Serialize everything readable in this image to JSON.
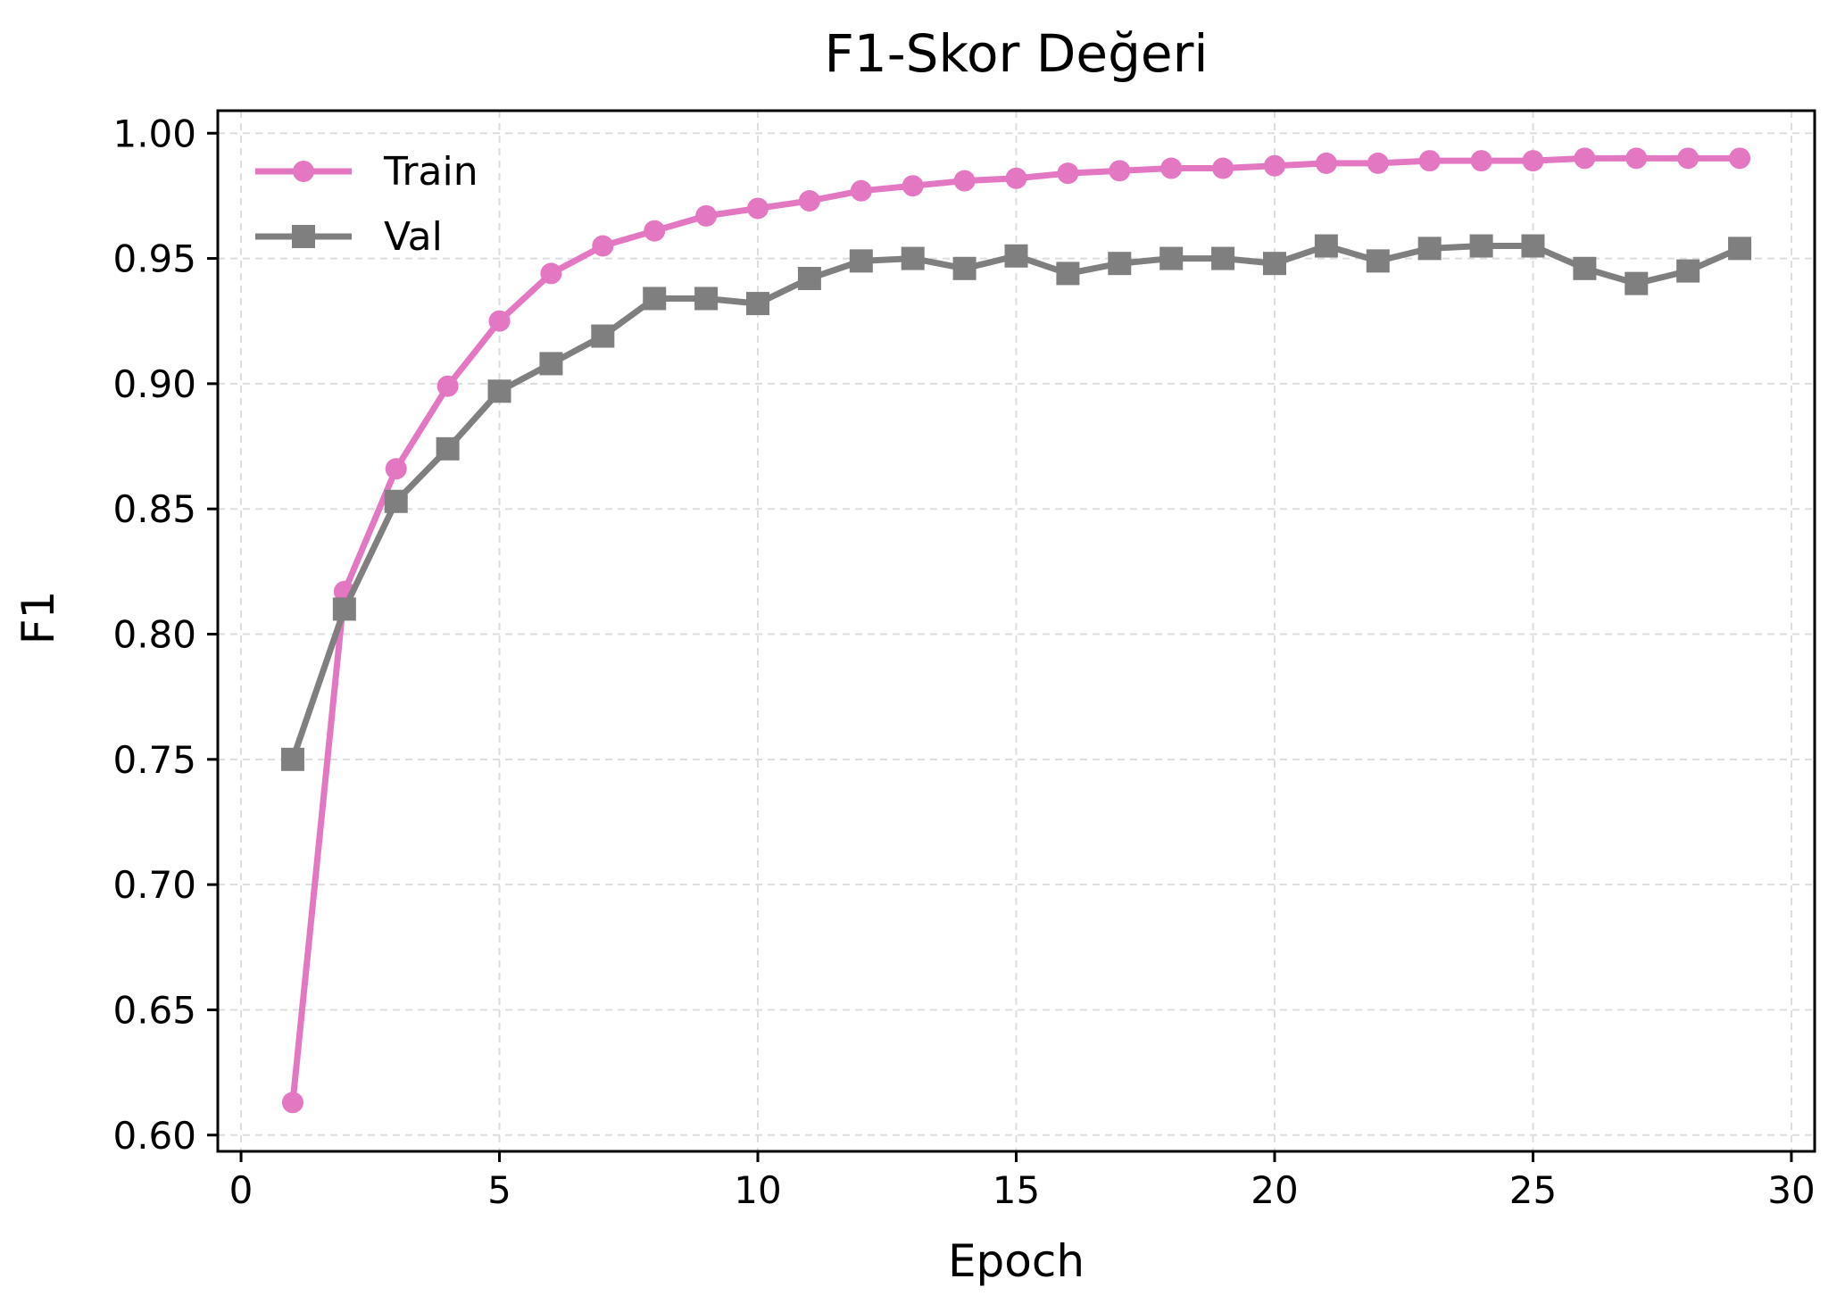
{
  "chart_data": {
    "type": "line",
    "title": "F1-Skor Değeri",
    "xlabel": "Epoch",
    "ylabel": "F1",
    "xlim": [
      -0.45,
      30.45
    ],
    "ylim": [
      0.5935,
      1.009
    ],
    "x_ticks": [
      0,
      5,
      10,
      15,
      20,
      25,
      30
    ],
    "y_ticks": [
      0.6,
      0.65,
      0.7,
      0.75,
      0.8,
      0.85,
      0.9,
      0.95,
      1.0
    ],
    "x_tick_labels": [
      "0",
      "5",
      "10",
      "15",
      "20",
      "25",
      "30"
    ],
    "y_tick_labels": [
      "0.60",
      "0.65",
      "0.70",
      "0.75",
      "0.80",
      "0.85",
      "0.90",
      "0.95",
      "1.00"
    ],
    "grid": true,
    "legend_position": "upper-left",
    "x": [
      1,
      2,
      3,
      4,
      5,
      6,
      7,
      8,
      9,
      10,
      11,
      12,
      13,
      14,
      15,
      16,
      17,
      18,
      19,
      20,
      21,
      22,
      23,
      24,
      25,
      26,
      27,
      28,
      29
    ],
    "series": [
      {
        "name": "Train",
        "color": "#e377c2",
        "marker": "circle",
        "values": [
          0.613,
          0.817,
          0.866,
          0.899,
          0.925,
          0.944,
          0.955,
          0.961,
          0.967,
          0.97,
          0.973,
          0.977,
          0.979,
          0.981,
          0.982,
          0.984,
          0.985,
          0.986,
          0.986,
          0.987,
          0.988,
          0.988,
          0.989,
          0.989,
          0.989,
          0.99,
          0.99,
          0.99,
          0.99
        ]
      },
      {
        "name": "Val",
        "color": "#7f7f7f",
        "marker": "square",
        "values": [
          0.75,
          0.81,
          0.853,
          0.874,
          0.897,
          0.908,
          0.919,
          0.934,
          0.934,
          0.932,
          0.942,
          0.949,
          0.95,
          0.946,
          0.951,
          0.944,
          0.948,
          0.95,
          0.95,
          0.948,
          0.955,
          0.949,
          0.954,
          0.955,
          0.955,
          0.946,
          0.94,
          0.945,
          0.954
        ]
      }
    ]
  }
}
